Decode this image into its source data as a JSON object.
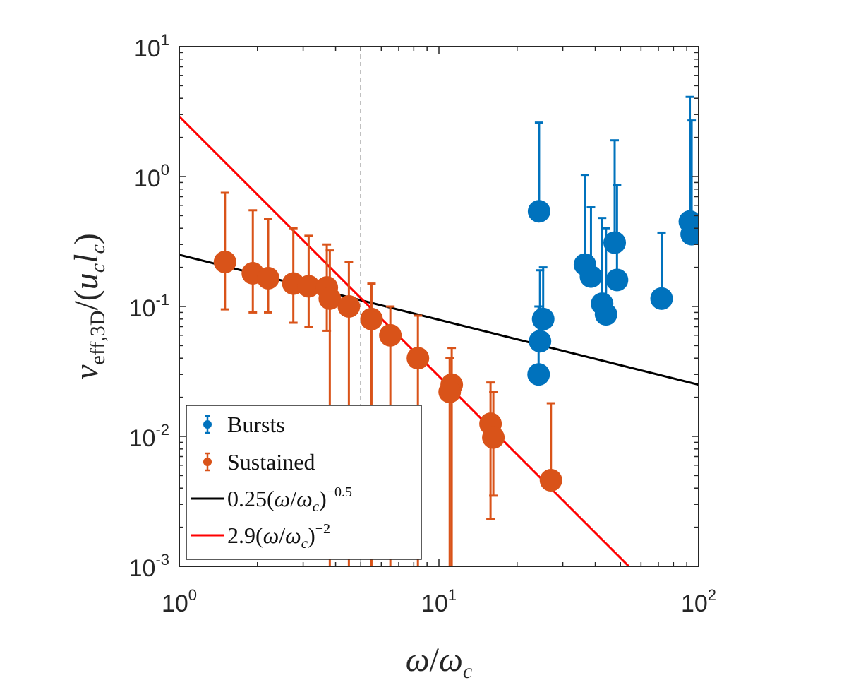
{
  "chart_data": {
    "type": "scatter",
    "title": "",
    "xlabel": "ω/ωc",
    "ylabel": "νeff,3D/(uclc)",
    "xscale": "log",
    "yscale": "log",
    "xlim": [
      1,
      100
    ],
    "ylim": [
      0.001,
      10
    ],
    "x_ticks": [
      {
        "value": 1,
        "base": "10",
        "exp": "0"
      },
      {
        "value": 10,
        "base": "10",
        "exp": "1"
      },
      {
        "value": 100,
        "base": "10",
        "exp": "2"
      }
    ],
    "y_ticks": [
      {
        "value": 0.001,
        "base": "10",
        "exp": "-3"
      },
      {
        "value": 0.01,
        "base": "10",
        "exp": "-2"
      },
      {
        "value": 0.1,
        "base": "10",
        "exp": "-1"
      },
      {
        "value": 1,
        "base": "10",
        "exp": "0"
      },
      {
        "value": 10,
        "base": "10",
        "exp": "1"
      }
    ],
    "vline": {
      "x": 5,
      "style": "dashed",
      "color": "#888888"
    },
    "series": [
      {
        "name": "Bursts",
        "kind": "errorbar",
        "color": "#0072BD",
        "points": [
          {
            "x": 24.3,
            "y": 0.54,
            "yupper": 2.6,
            "ylower": 0.54
          },
          {
            "x": 24.5,
            "y": 0.054,
            "yupper": 0.19,
            "ylower": 0.054
          },
          {
            "x": 25.2,
            "y": 0.08,
            "yupper": 0.2,
            "ylower": 0.08
          },
          {
            "x": 24.2,
            "y": 0.03,
            "yupper": 0.1,
            "ylower": 0.03
          },
          {
            "x": 36.5,
            "y": 0.21,
            "yupper": 1.03,
            "ylower": 0.21
          },
          {
            "x": 38.5,
            "y": 0.17,
            "yupper": 0.58,
            "ylower": 0.17
          },
          {
            "x": 42.5,
            "y": 0.105,
            "yupper": 0.48,
            "ylower": 0.105
          },
          {
            "x": 44.0,
            "y": 0.087,
            "yupper": 0.4,
            "ylower": 0.087
          },
          {
            "x": 47.5,
            "y": 0.31,
            "yupper": 1.9,
            "ylower": 0.31
          },
          {
            "x": 48.5,
            "y": 0.16,
            "yupper": 0.86,
            "ylower": 0.16
          },
          {
            "x": 72.0,
            "y": 0.115,
            "yupper": 0.37,
            "ylower": 0.115
          },
          {
            "x": 92.5,
            "y": 0.45,
            "yupper": 4.1,
            "ylower": 0.45
          },
          {
            "x": 94.0,
            "y": 0.36,
            "yupper": 2.7,
            "ylower": 0.36
          }
        ]
      },
      {
        "name": "Sustained",
        "kind": "errorbar",
        "color": "#D95319",
        "points": [
          {
            "x": 1.5,
            "y": 0.22,
            "yupper": 0.75,
            "ylower": 0.095
          },
          {
            "x": 1.92,
            "y": 0.18,
            "yupper": 0.55,
            "ylower": 0.09
          },
          {
            "x": 2.2,
            "y": 0.165,
            "yupper": 0.47,
            "ylower": 0.09
          },
          {
            "x": 2.75,
            "y": 0.15,
            "yupper": 0.4,
            "ylower": 0.075
          },
          {
            "x": 3.15,
            "y": 0.143,
            "yupper": 0.35,
            "ylower": 0.07
          },
          {
            "x": 3.7,
            "y": 0.14,
            "yupper": 0.3,
            "ylower": 0.065
          },
          {
            "x": 3.8,
            "y": 0.115,
            "yupper": 0.27,
            "ylower": 0.001
          },
          {
            "x": 4.5,
            "y": 0.1,
            "yupper": 0.22,
            "ylower": 0.001
          },
          {
            "x": 5.5,
            "y": 0.08,
            "yupper": 0.15,
            "ylower": 0.001
          },
          {
            "x": 6.5,
            "y": 0.06,
            "yupper": 0.1,
            "ylower": 0.001
          },
          {
            "x": 8.3,
            "y": 0.04,
            "yupper": 0.085,
            "ylower": 0.001
          },
          {
            "x": 11.2,
            "y": 0.025,
            "yupper": 0.048,
            "ylower": 0.001
          },
          {
            "x": 11.0,
            "y": 0.022,
            "yupper": 0.04,
            "ylower": 0.001
          },
          {
            "x": 15.8,
            "y": 0.0125,
            "yupper": 0.026,
            "ylower": 0.0023
          },
          {
            "x": 16.2,
            "y": 0.0098,
            "yupper": 0.022,
            "ylower": 0.0035
          },
          {
            "x": 27.0,
            "y": 0.0046,
            "yupper": 0.018,
            "ylower": 0.0046
          }
        ]
      },
      {
        "name": "0.25(ω/ωc)^-0.5",
        "kind": "line",
        "color": "#000000",
        "coef": 0.25,
        "exponent": -0.5
      },
      {
        "name": "2.9(ω/ωc)^-2",
        "kind": "line",
        "color": "#FF0000",
        "coef": 2.9,
        "exponent": -2
      }
    ],
    "legend": {
      "position": "bottom-left",
      "entries": [
        {
          "label": "Bursts"
        },
        {
          "label": "Sustained"
        },
        {
          "prefix": "0.25",
          "var": "ω",
          "sub": "c",
          "exp": "−0.5"
        },
        {
          "prefix": "2.9",
          "var": "ω",
          "sub": "c",
          "exp": "−2"
        }
      ]
    }
  }
}
